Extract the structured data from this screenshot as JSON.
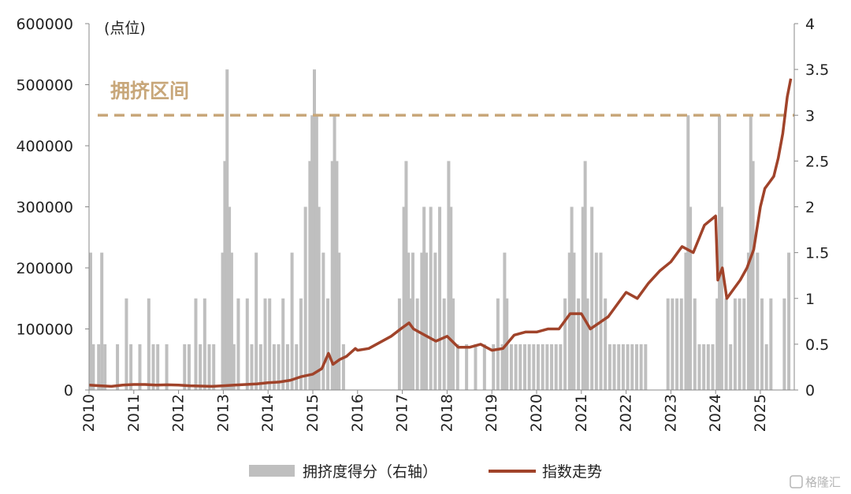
{
  "chart_data": {
    "type": "combo",
    "unit_label": "(点位)",
    "y_left": {
      "min": 0,
      "max": 600000,
      "ticks": [
        0,
        100000,
        200000,
        300000,
        400000,
        500000,
        600000
      ]
    },
    "y_right": {
      "min": 0,
      "max": 4,
      "ticks": [
        "0",
        "0.5",
        "1",
        "1.5",
        "2",
        "2.5",
        "3",
        "3.5",
        "4"
      ]
    },
    "x_ticks": [
      "2010",
      "2011",
      "2012",
      "2013",
      "2014",
      "2015",
      "2016",
      "2017",
      "2018",
      "2019",
      "2020",
      "2021",
      "2022",
      "2023",
      "2024",
      "2025"
    ],
    "reference": {
      "label": "拥挤区间",
      "value": 3,
      "axis": "right",
      "color": "#C8A77A"
    },
    "series": [
      {
        "name": "拥挤度得分（右轴）",
        "kind": "bar",
        "axis": "right",
        "color": "#BFBFBF",
        "points": [
          [
            2010.0,
            1.5
          ],
          [
            2010.06,
            0.5
          ],
          [
            2010.12,
            0
          ],
          [
            2010.18,
            0.5
          ],
          [
            2010.25,
            1.5
          ],
          [
            2010.32,
            0.5
          ],
          [
            2010.4,
            0
          ],
          [
            2010.5,
            0
          ],
          [
            2010.6,
            0.5
          ],
          [
            2010.7,
            0
          ],
          [
            2010.8,
            1.0
          ],
          [
            2010.9,
            0.5
          ],
          [
            2011.0,
            0
          ],
          [
            2011.1,
            0.5
          ],
          [
            2011.2,
            0
          ],
          [
            2011.3,
            1.0
          ],
          [
            2011.4,
            0.5
          ],
          [
            2011.5,
            0.5
          ],
          [
            2011.6,
            0
          ],
          [
            2011.7,
            0.5
          ],
          [
            2011.8,
            0
          ],
          [
            2011.9,
            0
          ],
          [
            2012.0,
            0
          ],
          [
            2012.1,
            0.5
          ],
          [
            2012.2,
            0.5
          ],
          [
            2012.3,
            0
          ],
          [
            2012.35,
            1.0
          ],
          [
            2012.45,
            0.5
          ],
          [
            2012.55,
            1.0
          ],
          [
            2012.65,
            0.5
          ],
          [
            2012.75,
            0.5
          ],
          [
            2012.85,
            0
          ],
          [
            2012.95,
            1.5
          ],
          [
            2013.0,
            2.5
          ],
          [
            2013.05,
            3.5
          ],
          [
            2013.1,
            2.0
          ],
          [
            2013.15,
            1.5
          ],
          [
            2013.2,
            0.5
          ],
          [
            2013.3,
            1.0
          ],
          [
            2013.4,
            0
          ],
          [
            2013.5,
            1.0
          ],
          [
            2013.6,
            0.5
          ],
          [
            2013.7,
            1.5
          ],
          [
            2013.8,
            0.5
          ],
          [
            2013.9,
            1.0
          ],
          [
            2014.0,
            1.0
          ],
          [
            2014.1,
            0.5
          ],
          [
            2014.2,
            0.5
          ],
          [
            2014.3,
            1.0
          ],
          [
            2014.4,
            0.5
          ],
          [
            2014.5,
            1.5
          ],
          [
            2014.6,
            0.5
          ],
          [
            2014.7,
            1.0
          ],
          [
            2014.8,
            2.0
          ],
          [
            2014.9,
            2.5
          ],
          [
            2014.95,
            3.0
          ],
          [
            2015.0,
            3.5
          ],
          [
            2015.05,
            3.0
          ],
          [
            2015.1,
            2.0
          ],
          [
            2015.2,
            1.5
          ],
          [
            2015.3,
            1.0
          ],
          [
            2015.4,
            2.5
          ],
          [
            2015.45,
            3.0
          ],
          [
            2015.5,
            2.5
          ],
          [
            2015.55,
            1.5
          ],
          [
            2015.65,
            0.5
          ],
          [
            2015.8,
            0
          ],
          [
            2016.0,
            0
          ],
          [
            2016.2,
            0
          ],
          [
            2016.4,
            0
          ],
          [
            2016.6,
            0
          ],
          [
            2016.8,
            0
          ],
          [
            2016.9,
            1.0
          ],
          [
            2017.0,
            2.0
          ],
          [
            2017.05,
            2.5
          ],
          [
            2017.1,
            1.5
          ],
          [
            2017.15,
            1.0
          ],
          [
            2017.2,
            1.5
          ],
          [
            2017.3,
            1.0
          ],
          [
            2017.4,
            1.5
          ],
          [
            2017.45,
            2.0
          ],
          [
            2017.5,
            1.5
          ],
          [
            2017.6,
            2.0
          ],
          [
            2017.7,
            1.5
          ],
          [
            2017.8,
            2.0
          ],
          [
            2017.9,
            1.0
          ],
          [
            2018.0,
            2.5
          ],
          [
            2018.05,
            2.0
          ],
          [
            2018.1,
            1.0
          ],
          [
            2018.2,
            0.5
          ],
          [
            2018.3,
            0
          ],
          [
            2018.4,
            0.5
          ],
          [
            2018.5,
            0
          ],
          [
            2018.6,
            0.5
          ],
          [
            2018.7,
            0
          ],
          [
            2018.8,
            0.5
          ],
          [
            2018.9,
            0
          ],
          [
            2019.0,
            0.5
          ],
          [
            2019.1,
            1.0
          ],
          [
            2019.2,
            0.5
          ],
          [
            2019.25,
            1.5
          ],
          [
            2019.3,
            1.0
          ],
          [
            2019.4,
            0.5
          ],
          [
            2019.5,
            0.5
          ],
          [
            2019.6,
            0.5
          ],
          [
            2019.7,
            0.5
          ],
          [
            2019.8,
            0.5
          ],
          [
            2019.9,
            0.5
          ],
          [
            2020.0,
            0.5
          ],
          [
            2020.1,
            0.5
          ],
          [
            2020.2,
            0.5
          ],
          [
            2020.3,
            0.5
          ],
          [
            2020.4,
            0.5
          ],
          [
            2020.5,
            0.5
          ],
          [
            2020.6,
            1.0
          ],
          [
            2020.7,
            1.5
          ],
          [
            2020.75,
            2.0
          ],
          [
            2020.8,
            1.5
          ],
          [
            2020.9,
            1.0
          ],
          [
            2021.0,
            2.0
          ],
          [
            2021.05,
            2.5
          ],
          [
            2021.1,
            1.0
          ],
          [
            2021.2,
            2.0
          ],
          [
            2021.3,
            1.5
          ],
          [
            2021.4,
            1.5
          ],
          [
            2021.5,
            1.0
          ],
          [
            2021.6,
            0.5
          ],
          [
            2021.7,
            0.5
          ],
          [
            2021.8,
            0.5
          ],
          [
            2021.9,
            0.5
          ],
          [
            2022.0,
            0.5
          ],
          [
            2022.1,
            0.5
          ],
          [
            2022.2,
            0.5
          ],
          [
            2022.3,
            0.5
          ],
          [
            2022.4,
            0.5
          ],
          [
            2022.5,
            0
          ],
          [
            2022.6,
            0
          ],
          [
            2022.7,
            0
          ],
          [
            2022.8,
            0
          ],
          [
            2022.9,
            1.0
          ],
          [
            2023.0,
            1.0
          ],
          [
            2023.1,
            1.0
          ],
          [
            2023.2,
            1.0
          ],
          [
            2023.3,
            1.5
          ],
          [
            2023.35,
            3.0
          ],
          [
            2023.4,
            2.0
          ],
          [
            2023.5,
            1.0
          ],
          [
            2023.6,
            0.5
          ],
          [
            2023.7,
            0.5
          ],
          [
            2023.8,
            0.5
          ],
          [
            2023.9,
            0.5
          ],
          [
            2024.0,
            1.0
          ],
          [
            2024.05,
            3.0
          ],
          [
            2024.1,
            2.0
          ],
          [
            2024.2,
            1.0
          ],
          [
            2024.3,
            0.5
          ],
          [
            2024.4,
            1.0
          ],
          [
            2024.5,
            1.0
          ],
          [
            2024.6,
            1.0
          ],
          [
            2024.7,
            1.5
          ],
          [
            2024.75,
            3.0
          ],
          [
            2024.8,
            2.5
          ],
          [
            2024.9,
            1.5
          ],
          [
            2025.0,
            1.0
          ],
          [
            2025.1,
            0.5
          ],
          [
            2025.2,
            1.0
          ],
          [
            2025.3,
            0
          ],
          [
            2025.4,
            0
          ],
          [
            2025.5,
            1.0
          ],
          [
            2025.6,
            1.5
          ]
        ]
      },
      {
        "name": "指数走势",
        "kind": "line",
        "axis": "left",
        "color": "#A0432A",
        "points": [
          [
            2010.0,
            8000
          ],
          [
            2010.25,
            7000
          ],
          [
            2010.5,
            6000
          ],
          [
            2010.75,
            8000
          ],
          [
            2011.0,
            9000
          ],
          [
            2011.25,
            9000
          ],
          [
            2011.5,
            8000
          ],
          [
            2011.75,
            8500
          ],
          [
            2012.0,
            8000
          ],
          [
            2012.25,
            7000
          ],
          [
            2012.5,
            6500
          ],
          [
            2012.75,
            6000
          ],
          [
            2013.0,
            7000
          ],
          [
            2013.25,
            8000
          ],
          [
            2013.5,
            9000
          ],
          [
            2013.75,
            10000
          ],
          [
            2014.0,
            12000
          ],
          [
            2014.25,
            13000
          ],
          [
            2014.5,
            16000
          ],
          [
            2014.75,
            22000
          ],
          [
            2015.0,
            26000
          ],
          [
            2015.2,
            35000
          ],
          [
            2015.35,
            60000
          ],
          [
            2015.45,
            42000
          ],
          [
            2015.6,
            50000
          ],
          [
            2015.75,
            55000
          ],
          [
            2015.95,
            68000
          ],
          [
            2016.0,
            65000
          ],
          [
            2016.25,
            68000
          ],
          [
            2016.5,
            78000
          ],
          [
            2016.75,
            88000
          ],
          [
            2017.0,
            102000
          ],
          [
            2017.15,
            110000
          ],
          [
            2017.25,
            100000
          ],
          [
            2017.5,
            90000
          ],
          [
            2017.75,
            80000
          ],
          [
            2018.0,
            88000
          ],
          [
            2018.25,
            70000
          ],
          [
            2018.5,
            70000
          ],
          [
            2018.75,
            75000
          ],
          [
            2019.0,
            65000
          ],
          [
            2019.25,
            68000
          ],
          [
            2019.5,
            90000
          ],
          [
            2019.75,
            95000
          ],
          [
            2020.0,
            95000
          ],
          [
            2020.25,
            100000
          ],
          [
            2020.5,
            100000
          ],
          [
            2020.75,
            125000
          ],
          [
            2021.0,
            125000
          ],
          [
            2021.2,
            100000
          ],
          [
            2021.4,
            110000
          ],
          [
            2021.6,
            120000
          ],
          [
            2021.8,
            140000
          ],
          [
            2022.0,
            160000
          ],
          [
            2022.25,
            150000
          ],
          [
            2022.5,
            175000
          ],
          [
            2022.75,
            195000
          ],
          [
            2023.0,
            210000
          ],
          [
            2023.25,
            235000
          ],
          [
            2023.5,
            225000
          ],
          [
            2023.75,
            270000
          ],
          [
            2024.0,
            285000
          ],
          [
            2024.05,
            180000
          ],
          [
            2024.15,
            200000
          ],
          [
            2024.25,
            150000
          ],
          [
            2024.4,
            165000
          ],
          [
            2024.55,
            180000
          ],
          [
            2024.7,
            200000
          ],
          [
            2024.85,
            230000
          ],
          [
            2025.0,
            300000
          ],
          [
            2025.1,
            330000
          ],
          [
            2025.2,
            340000
          ],
          [
            2025.3,
            350000
          ],
          [
            2025.4,
            380000
          ],
          [
            2025.5,
            420000
          ],
          [
            2025.6,
            480000
          ],
          [
            2025.68,
            510000
          ]
        ]
      }
    ]
  },
  "watermark": "格隆汇"
}
